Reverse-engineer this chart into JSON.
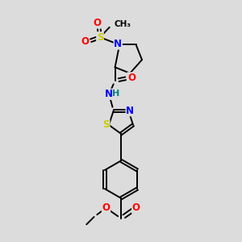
{
  "bg_color": "#dcdcdc",
  "bond_color": "#000000",
  "atom_colors": {
    "N": "#0000ff",
    "O": "#ff0000",
    "S": "#cccc00",
    "C": "#000000",
    "H": "#008080"
  },
  "figsize": [
    3.0,
    3.0
  ],
  "dpi": 100
}
